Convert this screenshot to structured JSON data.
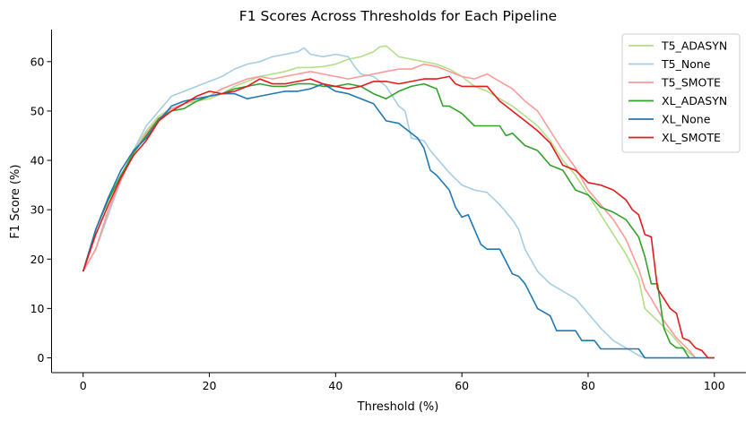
{
  "chart_data": {
    "type": "line",
    "title": "F1 Scores Across Thresholds for Each Pipeline",
    "xlabel": "Threshold (%)",
    "ylabel": "F1 Score (%)",
    "xlim": [
      -5,
      105
    ],
    "ylim": [
      -3,
      66.5
    ],
    "xticks": [
      0,
      20,
      40,
      60,
      80,
      100
    ],
    "yticks": [
      0,
      10,
      20,
      30,
      40,
      50,
      60
    ],
    "grid": false,
    "legend_position": "top-right",
    "series": [
      {
        "name": "T5_ADASYN",
        "color": "#b2df8a",
        "points": [
          [
            0,
            17.5
          ],
          [
            2,
            22
          ],
          [
            4,
            30
          ],
          [
            6,
            36.5
          ],
          [
            8,
            42
          ],
          [
            10,
            46
          ],
          [
            12,
            49
          ],
          [
            14,
            50.5
          ],
          [
            16,
            51.5
          ],
          [
            18,
            52
          ],
          [
            20,
            52.5
          ],
          [
            22,
            53.5
          ],
          [
            24,
            55
          ],
          [
            26,
            56
          ],
          [
            28,
            57
          ],
          [
            30,
            57.5
          ],
          [
            32,
            58
          ],
          [
            34,
            58.8
          ],
          [
            36,
            58.8
          ],
          [
            38,
            59
          ],
          [
            40,
            59.5
          ],
          [
            42,
            60.5
          ],
          [
            44,
            61
          ],
          [
            46,
            62
          ],
          [
            47,
            63
          ],
          [
            48,
            63.2
          ],
          [
            50,
            61
          ],
          [
            52,
            60.5
          ],
          [
            54,
            60
          ],
          [
            56,
            59.5
          ],
          [
            58,
            58.5
          ],
          [
            60,
            57
          ],
          [
            62,
            55
          ],
          [
            64,
            54
          ],
          [
            66,
            52.5
          ],
          [
            68,
            51
          ],
          [
            70,
            49
          ],
          [
            72,
            47
          ],
          [
            74,
            44
          ],
          [
            76,
            40
          ],
          [
            78,
            37
          ],
          [
            80,
            33
          ],
          [
            82,
            29
          ],
          [
            84,
            25
          ],
          [
            86,
            21
          ],
          [
            88,
            16
          ],
          [
            89,
            10
          ],
          [
            91,
            7.5
          ],
          [
            93,
            5
          ],
          [
            95,
            2
          ],
          [
            96,
            1
          ],
          [
            97,
            0
          ]
        ]
      },
      {
        "name": "T5_None",
        "color": "#a6cee3",
        "points": [
          [
            0,
            17.5
          ],
          [
            2,
            22
          ],
          [
            4,
            29
          ],
          [
            6,
            36
          ],
          [
            8,
            42
          ],
          [
            10,
            47
          ],
          [
            12,
            50
          ],
          [
            14,
            53
          ],
          [
            16,
            54
          ],
          [
            18,
            55
          ],
          [
            20,
            56
          ],
          [
            22,
            57
          ],
          [
            24,
            58.5
          ],
          [
            26,
            59.5
          ],
          [
            28,
            60
          ],
          [
            30,
            61
          ],
          [
            32,
            61.5
          ],
          [
            34,
            62
          ],
          [
            35,
            62.8
          ],
          [
            36,
            61.5
          ],
          [
            38,
            61
          ],
          [
            40,
            61.5
          ],
          [
            42,
            61
          ],
          [
            43,
            59
          ],
          [
            44,
            57.5
          ],
          [
            46,
            57
          ],
          [
            48,
            55
          ],
          [
            50,
            51
          ],
          [
            51,
            50
          ],
          [
            52,
            44.5
          ],
          [
            54,
            44
          ],
          [
            55,
            42
          ],
          [
            56,
            40.5
          ],
          [
            58,
            37.5
          ],
          [
            60,
            35
          ],
          [
            62,
            34
          ],
          [
            64,
            33.5
          ],
          [
            66,
            31
          ],
          [
            68,
            28
          ],
          [
            69,
            26
          ],
          [
            70,
            22
          ],
          [
            72,
            17.5
          ],
          [
            74,
            15
          ],
          [
            76,
            13.5
          ],
          [
            78,
            12
          ],
          [
            80,
            9
          ],
          [
            82,
            6
          ],
          [
            84,
            3.5
          ],
          [
            86,
            2
          ],
          [
            88,
            0.5
          ],
          [
            89,
            0
          ],
          [
            100,
            0
          ]
        ]
      },
      {
        "name": "T5_SMOTE",
        "color": "#fb9a99",
        "points": [
          [
            0,
            17.5
          ],
          [
            2,
            22
          ],
          [
            4,
            30
          ],
          [
            6,
            36
          ],
          [
            8,
            41.5
          ],
          [
            10,
            45.5
          ],
          [
            12,
            48.5
          ],
          [
            14,
            50.5
          ],
          [
            16,
            51.5
          ],
          [
            18,
            52.5
          ],
          [
            20,
            53
          ],
          [
            22,
            54.5
          ],
          [
            24,
            55.5
          ],
          [
            26,
            56.5
          ],
          [
            28,
            57
          ],
          [
            30,
            56.5
          ],
          [
            32,
            57
          ],
          [
            34,
            57.5
          ],
          [
            36,
            58
          ],
          [
            38,
            57.5
          ],
          [
            40,
            57
          ],
          [
            42,
            56.5
          ],
          [
            44,
            57
          ],
          [
            46,
            57.5
          ],
          [
            48,
            58
          ],
          [
            50,
            58.5
          ],
          [
            52,
            58.5
          ],
          [
            54,
            59.5
          ],
          [
            56,
            59
          ],
          [
            58,
            58
          ],
          [
            60,
            57
          ],
          [
            62,
            56.5
          ],
          [
            64,
            57.5
          ],
          [
            66,
            56
          ],
          [
            68,
            54.5
          ],
          [
            70,
            52
          ],
          [
            72,
            50
          ],
          [
            74,
            46
          ],
          [
            76,
            42
          ],
          [
            78,
            38.5
          ],
          [
            80,
            34
          ],
          [
            82,
            31
          ],
          [
            84,
            28
          ],
          [
            86,
            24
          ],
          [
            88,
            18
          ],
          [
            89,
            14
          ],
          [
            90,
            12
          ],
          [
            92,
            7.5
          ],
          [
            94,
            4
          ],
          [
            96,
            1.5
          ],
          [
            97,
            0
          ]
        ]
      },
      {
        "name": "XL_ADASYN",
        "color": "#33a02c",
        "points": [
          [
            0,
            17.5
          ],
          [
            2,
            26
          ],
          [
            4,
            32
          ],
          [
            6,
            37
          ],
          [
            8,
            41.5
          ],
          [
            10,
            45
          ],
          [
            12,
            48.5
          ],
          [
            14,
            50
          ],
          [
            16,
            50.5
          ],
          [
            18,
            52
          ],
          [
            20,
            53
          ],
          [
            22,
            53.5
          ],
          [
            24,
            54.5
          ],
          [
            26,
            55
          ],
          [
            28,
            55.5
          ],
          [
            30,
            55
          ],
          [
            32,
            55
          ],
          [
            34,
            55.5
          ],
          [
            36,
            55.5
          ],
          [
            38,
            55
          ],
          [
            40,
            55
          ],
          [
            42,
            55.5
          ],
          [
            44,
            55
          ],
          [
            46,
            53.5
          ],
          [
            48,
            52.5
          ],
          [
            50,
            54
          ],
          [
            52,
            55
          ],
          [
            54,
            55.5
          ],
          [
            56,
            54.5
          ],
          [
            57,
            51
          ],
          [
            58,
            51
          ],
          [
            60,
            49.5
          ],
          [
            62,
            47
          ],
          [
            64,
            47
          ],
          [
            66,
            47
          ],
          [
            67,
            45
          ],
          [
            68,
            45.5
          ],
          [
            70,
            43
          ],
          [
            72,
            42
          ],
          [
            74,
            39
          ],
          [
            76,
            38
          ],
          [
            78,
            34
          ],
          [
            80,
            33
          ],
          [
            82,
            30.5
          ],
          [
            84,
            29.5
          ],
          [
            86,
            28
          ],
          [
            88,
            24.5
          ],
          [
            89,
            20.5
          ],
          [
            90,
            15
          ],
          [
            91,
            15
          ],
          [
            92,
            6
          ],
          [
            93,
            3
          ],
          [
            94,
            2
          ],
          [
            95,
            2
          ],
          [
            96,
            0
          ]
        ]
      },
      {
        "name": "XL_None",
        "color": "#1f78b4",
        "points": [
          [
            0,
            17.5
          ],
          [
            2,
            26
          ],
          [
            4,
            32.5
          ],
          [
            6,
            38
          ],
          [
            8,
            42
          ],
          [
            10,
            44.5
          ],
          [
            12,
            48
          ],
          [
            14,
            51
          ],
          [
            16,
            52
          ],
          [
            18,
            52.5
          ],
          [
            20,
            53
          ],
          [
            22,
            53.5
          ],
          [
            24,
            53.5
          ],
          [
            26,
            52.5
          ],
          [
            28,
            53
          ],
          [
            30,
            53.5
          ],
          [
            32,
            54
          ],
          [
            34,
            54
          ],
          [
            36,
            54.5
          ],
          [
            38,
            55.5
          ],
          [
            40,
            54
          ],
          [
            42,
            53.5
          ],
          [
            44,
            52.5
          ],
          [
            46,
            51.5
          ],
          [
            48,
            48
          ],
          [
            50,
            47.5
          ],
          [
            52,
            45.5
          ],
          [
            53,
            44.5
          ],
          [
            54,
            42.5
          ],
          [
            55,
            38
          ],
          [
            56,
            37
          ],
          [
            58,
            34
          ],
          [
            59,
            30.5
          ],
          [
            60,
            28.5
          ],
          [
            61,
            29
          ],
          [
            62,
            26
          ],
          [
            63,
            23
          ],
          [
            64,
            22
          ],
          [
            66,
            22
          ],
          [
            68,
            17
          ],
          [
            69,
            16.5
          ],
          [
            70,
            15
          ],
          [
            72,
            10
          ],
          [
            74,
            8.5
          ],
          [
            75,
            5.5
          ],
          [
            78,
            5.5
          ],
          [
            79,
            3.5
          ],
          [
            81,
            3.5
          ],
          [
            82,
            1.8
          ],
          [
            88,
            1.8
          ],
          [
            89,
            0
          ],
          [
            100,
            0
          ]
        ]
      },
      {
        "name": "XL_SMOTE",
        "color": "#e31a1c",
        "points": [
          [
            0,
            17.5
          ],
          [
            2,
            25
          ],
          [
            4,
            31
          ],
          [
            6,
            36.5
          ],
          [
            8,
            41
          ],
          [
            10,
            44
          ],
          [
            12,
            48
          ],
          [
            14,
            50
          ],
          [
            16,
            51.5
          ],
          [
            18,
            53
          ],
          [
            20,
            54
          ],
          [
            22,
            53.5
          ],
          [
            24,
            54
          ],
          [
            26,
            55
          ],
          [
            28,
            56.5
          ],
          [
            30,
            55.5
          ],
          [
            32,
            55.5
          ],
          [
            34,
            56
          ],
          [
            36,
            56.5
          ],
          [
            38,
            55.5
          ],
          [
            40,
            55
          ],
          [
            42,
            54.5
          ],
          [
            44,
            55
          ],
          [
            46,
            56
          ],
          [
            48,
            56
          ],
          [
            50,
            55.5
          ],
          [
            52,
            56
          ],
          [
            54,
            56.5
          ],
          [
            56,
            56.5
          ],
          [
            58,
            57
          ],
          [
            59,
            55.5
          ],
          [
            60,
            55
          ],
          [
            62,
            55
          ],
          [
            64,
            55
          ],
          [
            66,
            52
          ],
          [
            68,
            50
          ],
          [
            70,
            48
          ],
          [
            72,
            46
          ],
          [
            74,
            43.5
          ],
          [
            76,
            39
          ],
          [
            78,
            38
          ],
          [
            80,
            35.5
          ],
          [
            82,
            35
          ],
          [
            84,
            34
          ],
          [
            86,
            32
          ],
          [
            87,
            30
          ],
          [
            88,
            29
          ],
          [
            89,
            25
          ],
          [
            90,
            24.5
          ],
          [
            91,
            14
          ],
          [
            92,
            12
          ],
          [
            93,
            10
          ],
          [
            94,
            9
          ],
          [
            95,
            4
          ],
          [
            96,
            3.5
          ],
          [
            97,
            2
          ],
          [
            98,
            1.5
          ],
          [
            99,
            0
          ],
          [
            100,
            0
          ]
        ]
      }
    ]
  }
}
